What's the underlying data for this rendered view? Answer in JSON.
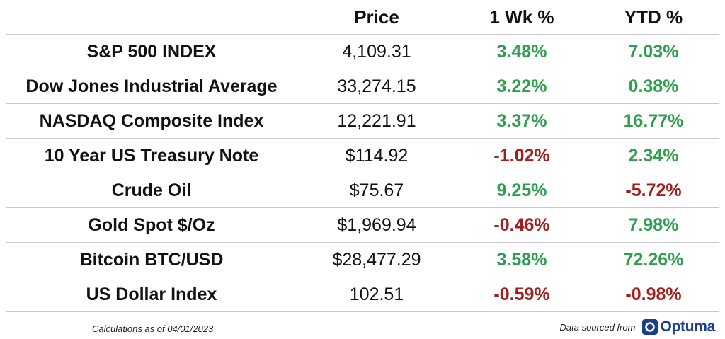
{
  "table": {
    "headers": {
      "name": "",
      "price": "Price",
      "week": "1 Wk %",
      "ytd": "YTD %"
    },
    "rows": [
      {
        "name": "S&P 500 INDEX",
        "price": "4,109.31",
        "week": "3.48%",
        "ytd": "7.03%"
      },
      {
        "name": "Dow Jones Industrial Average",
        "price": "33,274.15",
        "week": "3.22%",
        "ytd": "0.38%"
      },
      {
        "name": "NASDAQ Composite Index",
        "price": "12,221.91",
        "week": "3.37%",
        "ytd": "16.77%"
      },
      {
        "name": "10 Year US Treasury Note",
        "price": "$114.92",
        "week": "-1.02%",
        "ytd": "2.34%"
      },
      {
        "name": "Crude Oil",
        "price": "$75.67",
        "week": "9.25%",
        "ytd": "-5.72%"
      },
      {
        "name": "Gold Spot $/Oz",
        "price": "$1,969.94",
        "week": "-0.46%",
        "ytd": "7.98%"
      },
      {
        "name": "Bitcoin BTC/USD",
        "price": "$28,477.29",
        "week": "3.58%",
        "ytd": "72.26%"
      },
      {
        "name": "US Dollar Index",
        "price": "102.51",
        "week": "-0.59%",
        "ytd": "-0.98%"
      }
    ]
  },
  "footer": {
    "note": "Calculations as of 04/01/2023",
    "source_label": "Data sourced from",
    "logo_text": "Optuma",
    "logo_icon": "optuma-logo-icon"
  },
  "colors": {
    "positive": "#2e9e4f",
    "negative": "#a51e1e",
    "brand": "#1c3f8c"
  }
}
